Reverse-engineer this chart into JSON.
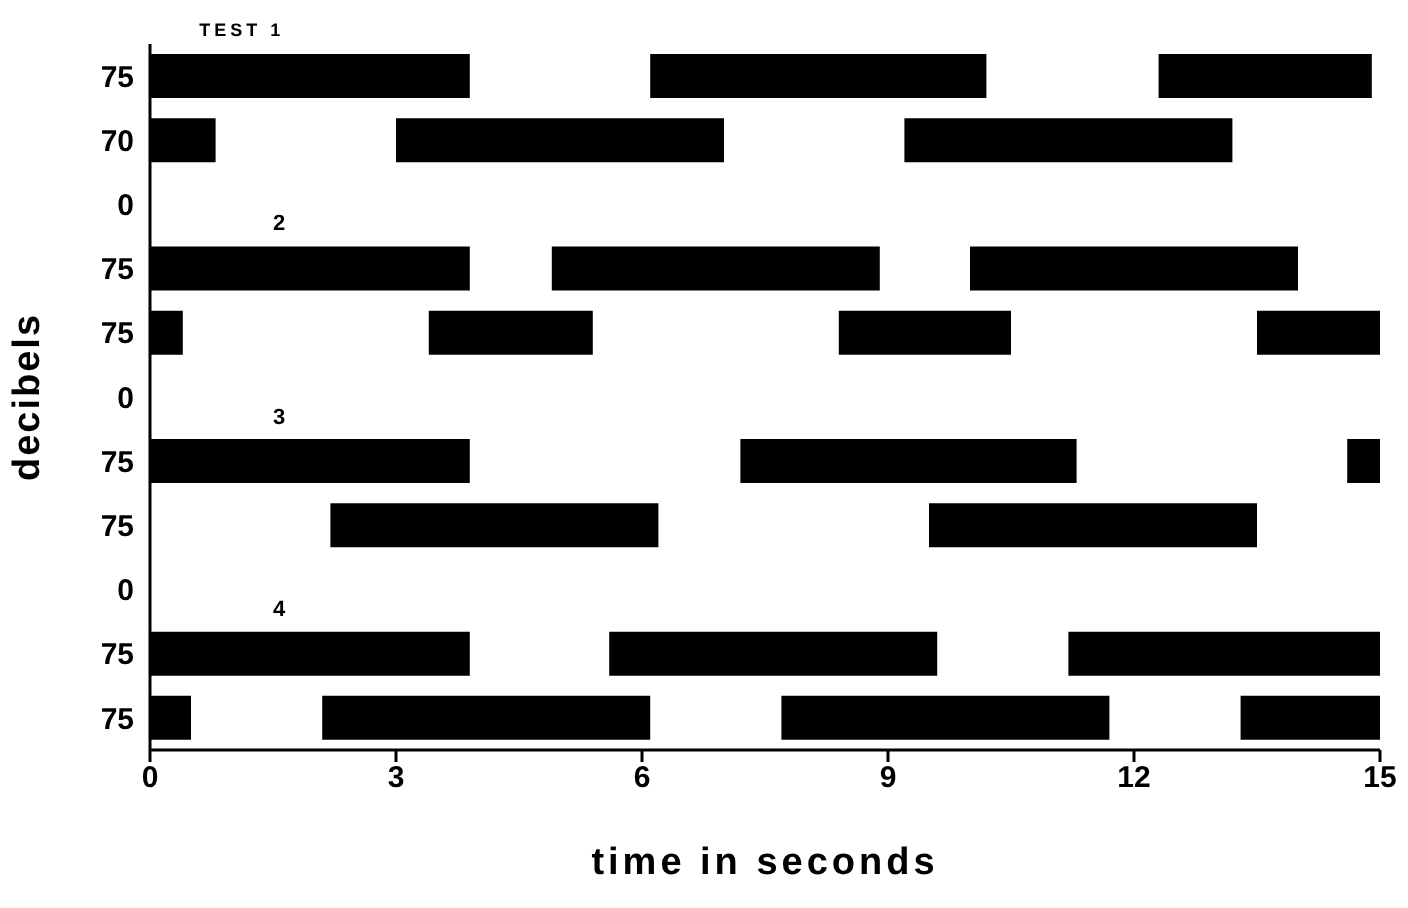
{
  "chart_data": {
    "type": "bar",
    "orientation": "horizontal",
    "xlabel": "time in seconds",
    "ylabel": "decibels",
    "categories": [
      "75",
      "70",
      "0",
      "75",
      "75",
      "0",
      "75",
      "75",
      "0",
      "75",
      "75"
    ],
    "series": [
      {
        "color": "#000000",
        "base": [
          0,
          0,
          null,
          0,
          0,
          null,
          0,
          2.2,
          null,
          0,
          0
        ],
        "values": [
          3.9,
          0.8,
          null,
          3.9,
          0.4,
          null,
          3.9,
          4.0,
          null,
          3.9,
          0.5
        ]
      },
      {
        "color": "#000000",
        "base": [
          6.1,
          3.0,
          null,
          4.9,
          3.4,
          null,
          7.2,
          9.5,
          null,
          5.6,
          2.1
        ],
        "values": [
          4.1,
          4.0,
          null,
          4.0,
          2.0,
          null,
          4.1,
          4.0,
          null,
          4.0,
          4.0
        ]
      },
      {
        "color": "#000000",
        "base": [
          12.3,
          9.2,
          null,
          10.0,
          8.4,
          null,
          14.6,
          null,
          null,
          11.2,
          7.7
        ],
        "values": [
          2.6,
          4.0,
          null,
          4.0,
          2.1,
          null,
          0.4,
          null,
          null,
          3.8,
          4.0
        ]
      },
      {
        "color": "#000000",
        "base": [
          null,
          null,
          null,
          null,
          13.5,
          null,
          null,
          null,
          null,
          null,
          13.3
        ],
        "values": [
          null,
          null,
          null,
          null,
          1.5,
          null,
          null,
          null,
          null,
          null,
          1.7
        ]
      }
    ],
    "xlim": [
      0,
      15
    ],
    "xticks": [
      0,
      3,
      6,
      9,
      12,
      15
    ],
    "annotations": [
      "TEST 1",
      "2",
      "3",
      "4"
    ],
    "grid": false,
    "legend": false
  }
}
